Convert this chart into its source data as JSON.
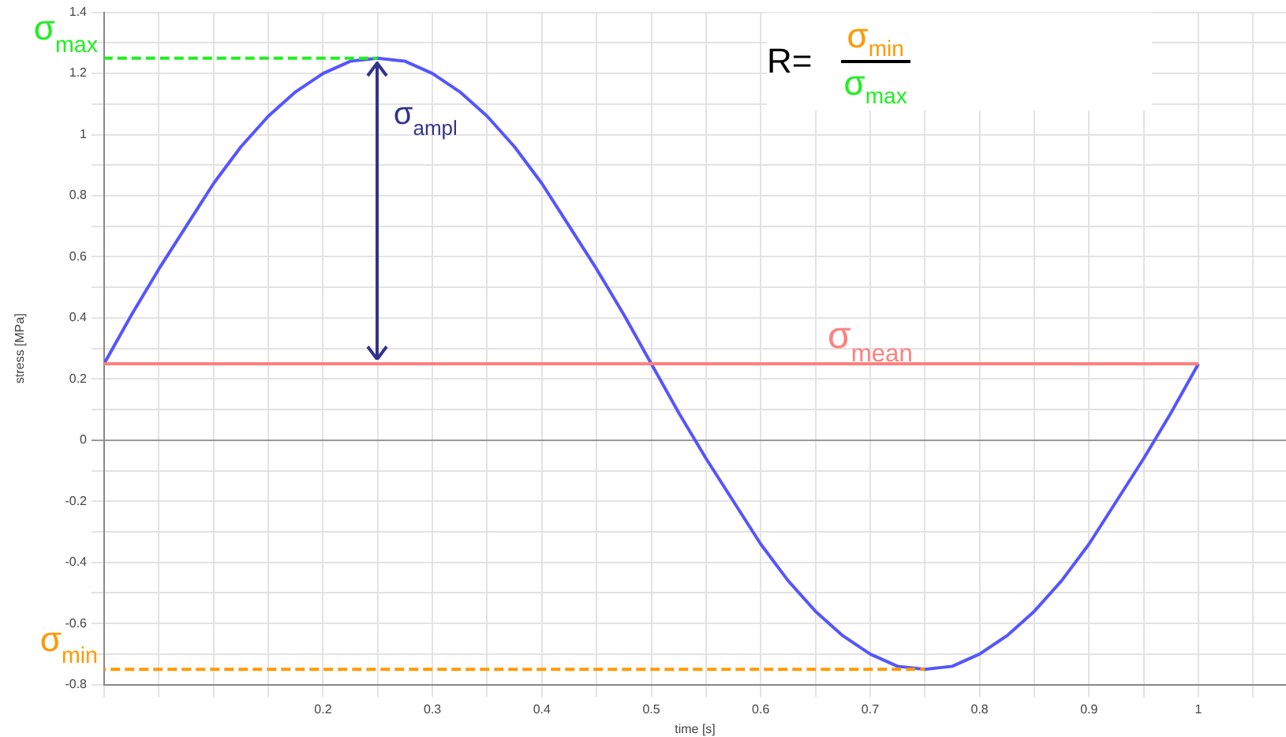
{
  "chart_data": {
    "type": "line",
    "xlabel": "time [s]",
    "ylabel": "stress [MPa]",
    "xlim": [
      0,
      1.08
    ],
    "ylim": [
      -0.8,
      1.4
    ],
    "xticks": [
      {
        "value": 0,
        "label": null
      },
      {
        "value": 0.05,
        "label": null
      },
      {
        "value": 0.1,
        "label": null
      },
      {
        "value": 0.15,
        "label": null
      },
      0.2,
      {
        "value": 0.25,
        "label": null
      },
      0.3,
      {
        "value": 0.35,
        "label": null
      },
      0.4,
      {
        "value": 0.45,
        "label": null
      },
      0.5,
      {
        "value": 0.55,
        "label": null
      },
      0.6,
      {
        "value": 0.65,
        "label": null
      },
      0.7,
      {
        "value": 0.75,
        "label": null
      },
      0.8,
      {
        "value": 0.85,
        "label": null
      },
      0.9,
      {
        "value": 0.95,
        "label": null
      },
      1,
      {
        "value": 1.05,
        "label": null
      }
    ],
    "yticks": [
      -0.8,
      {
        "value": -0.7,
        "label": null
      },
      -0.6,
      {
        "value": -0.5,
        "label": null
      },
      -0.4,
      {
        "value": -0.3,
        "label": null
      },
      -0.2,
      {
        "value": -0.1,
        "label": null
      },
      0,
      {
        "value": 0.1,
        "label": null
      },
      0.2,
      {
        "value": 0.3,
        "label": null
      },
      0.4,
      {
        "value": 0.5,
        "label": null
      },
      0.6,
      {
        "value": 0.7,
        "label": null
      },
      0.8,
      {
        "value": 0.9,
        "label": null
      },
      1,
      {
        "value": 1.1,
        "label": null
      },
      1.2,
      {
        "value": 1.3,
        "label": null
      },
      1.4
    ],
    "grid": true,
    "legend": false,
    "marker": "none",
    "series": [
      {
        "color": "#5555ff",
        "x": [
          0,
          0.025,
          0.05,
          0.075,
          0.1,
          0.125,
          0.15,
          0.175,
          0.2,
          0.225,
          0.25,
          0.275,
          0.3,
          0.325,
          0.35,
          0.375,
          0.4,
          0.425,
          0.45,
          0.475,
          0.5,
          0.525,
          0.55,
          0.575,
          0.6,
          0.625,
          0.65,
          0.675,
          0.7,
          0.725,
          0.75,
          0.775,
          0.8,
          0.825,
          0.85,
          0.875,
          0.9,
          0.925,
          0.95,
          0.975,
          1
        ],
        "values": [
          0.25,
          0.41,
          0.56,
          0.7,
          0.84,
          0.96,
          1.06,
          1.14,
          1.2,
          1.24,
          1.25,
          1.24,
          1.2,
          1.14,
          1.06,
          0.96,
          0.84,
          0.7,
          0.56,
          0.41,
          0.25,
          0.09,
          -0.06,
          -0.2,
          -0.34,
          -0.46,
          -0.56,
          -0.64,
          -0.7,
          -0.74,
          -0.75,
          -0.74,
          -0.7,
          -0.64,
          -0.56,
          -0.46,
          -0.34,
          -0.2,
          -0.06,
          0.09,
          0.25
        ]
      },
      {
        "name": "σ$_{max}$",
        "color": "#22ee22",
        "line_style": "dashed",
        "x": [
          0,
          0.25
        ],
        "values": [
          1.25,
          1.25
        ]
      },
      {
        "name": "σ$_{min}$",
        "color": "#ff9900",
        "line_style": "dashed",
        "x": [
          0,
          0.75
        ],
        "values": [
          -0.75,
          -0.75
        ]
      },
      {
        "name": "σ$_{mean}$",
        "color": "#ff8080",
        "x": [
          0,
          1
        ],
        "values": [
          0.25,
          0.25
        ]
      }
    ],
    "annotations": [
      {
        "text": "σ$_{ampl}$",
        "x": 0.25,
        "y": 0.25
      },
      "R=",
      "σ$_{min}$",
      "σ$_{max}$"
    ]
  }
}
